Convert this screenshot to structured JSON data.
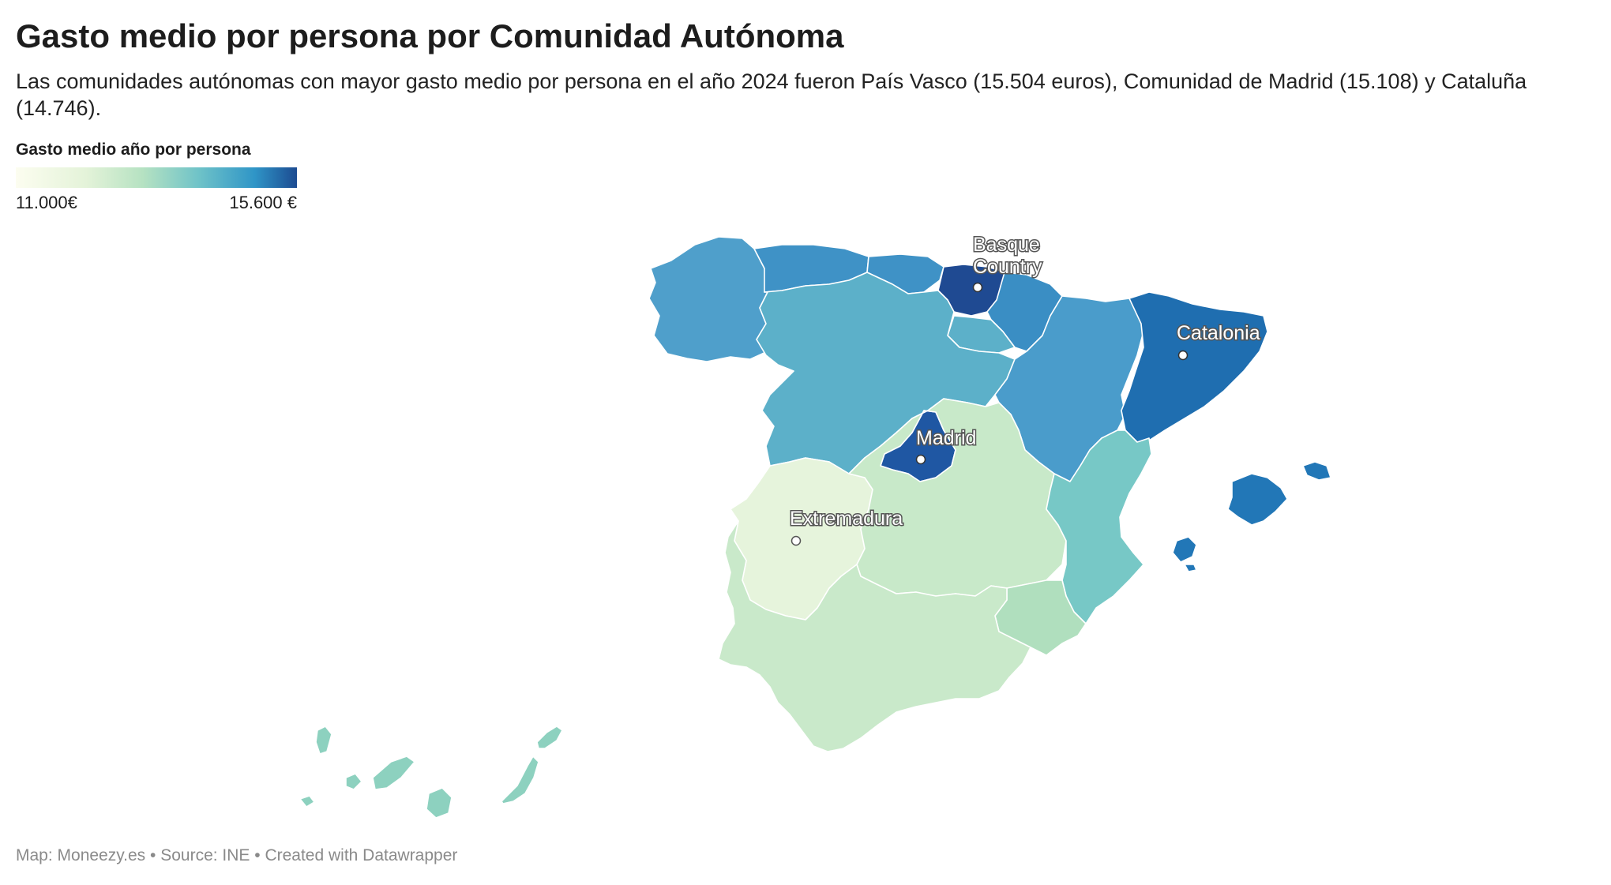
{
  "header": {
    "title": "Gasto medio por persona por Comunidad Autónoma",
    "subtitle": "Las comunidades autónomas con mayor gasto medio por persona en el año 2024 fueron País Vasco (15.504 euros), Comunidad de Madrid (15.108) y Cataluña (14.746)."
  },
  "legend": {
    "title": "Gasto medio año por persona",
    "min_label": "11.000€",
    "max_label": "15.600 €"
  },
  "map": {
    "regions": {
      "galicia": "#4f9fcb",
      "asturias": "#3f92c6",
      "cantabria": "#3f92c6",
      "pais_vasco": "#1f4a92",
      "navarra": "#3a8ec4",
      "la_rioja": "#5cb0c9",
      "castilla_leon": "#5cb0c9",
      "aragon": "#4a9ccb",
      "cataluna": "#1f6eb0",
      "madrid": "#1f57a3",
      "extremadura": "#e6f4dc",
      "castilla_la_mancha": "#c8e9c9",
      "valencia": "#77c8c6",
      "murcia": "#b0dfbe",
      "andalucia": "#c9e9ca",
      "baleares": "#2277b7",
      "canarias": "#8dd1bf"
    },
    "labels": {
      "basque": "Basque",
      "basque_line2": "Country",
      "catalonia": "Catalonia",
      "madrid": "Madrid",
      "extremadura": "Extremadura"
    }
  },
  "footer": {
    "text": "Map: Moneezy.es • Source: INE • Created with Datawrapper"
  }
}
